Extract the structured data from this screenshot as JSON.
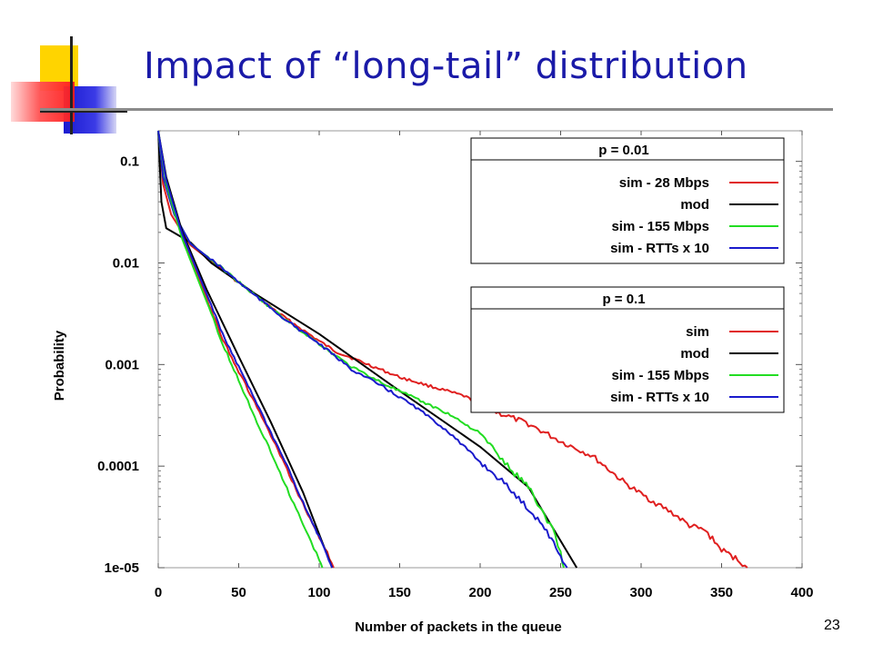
{
  "slide": {
    "title": "Impact of “long-tail” distribution",
    "number": "23"
  },
  "chart_data": {
    "type": "line",
    "xlabel": "Number of packets in the queue",
    "ylabel": "Probability",
    "xlim": [
      0,
      400
    ],
    "ylim": [
      1e-05,
      0.2
    ],
    "yscale": "log",
    "x_ticks": [
      "0",
      "50",
      "100",
      "150",
      "200",
      "250",
      "300",
      "350",
      "400"
    ],
    "y_ticks": [
      {
        "value": 0.1,
        "label": "0.1"
      },
      {
        "value": 0.01,
        "label": "0.01"
      },
      {
        "value": 0.001,
        "label": "0.001"
      },
      {
        "value": 0.0001,
        "label": "0.0001"
      },
      {
        "value": 1e-05,
        "label": "1e-05"
      }
    ],
    "grid": false,
    "legends": [
      {
        "title": "p = 0.01",
        "position": "top-right",
        "entries": [
          {
            "label": "sim - 28 Mbps",
            "color": "#e02020"
          },
          {
            "label": "mod",
            "color": "#000000"
          },
          {
            "label": "sim - 155 Mbps",
            "color": "#22dd22"
          },
          {
            "label": "sim - RTTs x 10",
            "color": "#1a1acc"
          }
        ]
      },
      {
        "title": "p = 0.1",
        "position": "right",
        "entries": [
          {
            "label": "sim",
            "color": "#e02020"
          },
          {
            "label": "mod",
            "color": "#000000"
          },
          {
            "label": "sim - 155 Mbps",
            "color": "#22dd22"
          },
          {
            "label": "sim - RTTs x 10",
            "color": "#1a1acc"
          }
        ]
      }
    ],
    "series": [
      {
        "group": "p = 0.01",
        "color": "#e02020",
        "points": [
          [
            0,
            0.2
          ],
          [
            3,
            0.06
          ],
          [
            8,
            0.03
          ],
          [
            20,
            0.015
          ],
          [
            40,
            0.0085
          ],
          [
            60,
            0.0048
          ],
          [
            80,
            0.0028
          ],
          [
            100,
            0.0017
          ],
          [
            110,
            0.00135
          ],
          [
            150,
            0.00075
          ],
          [
            190,
            0.00049
          ],
          [
            210,
            0.00034
          ],
          [
            230,
            0.00026
          ],
          [
            250,
            0.000175
          ],
          [
            270,
            0.000125
          ],
          [
            290,
            6.8e-05
          ],
          [
            300,
            5.3e-05
          ],
          [
            320,
            3.4e-05
          ],
          [
            330,
            2.6e-05
          ],
          [
            340,
            2.3e-05
          ],
          [
            350,
            1.5e-05
          ],
          [
            360,
            1.2e-05
          ],
          [
            363,
            1.1e-05
          ],
          [
            366,
            1e-05
          ]
        ]
      },
      {
        "group": "p = 0.01",
        "color": "#000000",
        "points": [
          [
            0,
            0.2
          ],
          [
            2,
            0.04
          ],
          [
            5,
            0.022
          ],
          [
            20,
            0.016
          ],
          [
            33,
            0.01
          ],
          [
            60,
            0.005
          ],
          [
            100,
            0.002
          ],
          [
            150,
            0.00055
          ],
          [
            200,
            0.000155
          ],
          [
            230,
            6.2e-05
          ],
          [
            260,
            1e-05
          ]
        ]
      },
      {
        "group": "p = 0.01",
        "color": "#22dd22",
        "points": [
          [
            0,
            0.2
          ],
          [
            3,
            0.07
          ],
          [
            10,
            0.03
          ],
          [
            20,
            0.0155
          ],
          [
            40,
            0.0088
          ],
          [
            60,
            0.0048
          ],
          [
            80,
            0.0027
          ],
          [
            100,
            0.0016
          ],
          [
            120,
            0.00095
          ],
          [
            140,
            0.00065
          ],
          [
            160,
            0.00046
          ],
          [
            180,
            0.00033
          ],
          [
            200,
            0.00021
          ],
          [
            220,
            8.8e-05
          ],
          [
            230,
            6.4e-05
          ],
          [
            240,
            3.2e-05
          ],
          [
            245,
            2.5e-05
          ],
          [
            250,
            1.4e-05
          ],
          [
            252,
            1e-05
          ]
        ]
      },
      {
        "group": "p = 0.01",
        "color": "#1a1acc",
        "points": [
          [
            0,
            0.2
          ],
          [
            3,
            0.07
          ],
          [
            10,
            0.03
          ],
          [
            20,
            0.0155
          ],
          [
            40,
            0.0088
          ],
          [
            60,
            0.0048
          ],
          [
            80,
            0.0027
          ],
          [
            100,
            0.0016
          ],
          [
            120,
            0.0009
          ],
          [
            140,
            0.0006
          ],
          [
            160,
            0.00038
          ],
          [
            180,
            0.00022
          ],
          [
            200,
            0.00011
          ],
          [
            215,
            6.8e-05
          ],
          [
            230,
            3.8e-05
          ],
          [
            240,
            2.5e-05
          ],
          [
            250,
            1.3e-05
          ],
          [
            254,
            1e-05
          ]
        ]
      },
      {
        "group": "p = 0.1",
        "color": "#e02020",
        "points": [
          [
            0,
            0.2
          ],
          [
            5,
            0.06
          ],
          [
            15,
            0.018
          ],
          [
            30,
            0.0045
          ],
          [
            40,
            0.0018
          ],
          [
            50,
            0.00085
          ],
          [
            60,
            0.00042
          ],
          [
            70,
            0.0002
          ],
          [
            80,
            9.2e-05
          ],
          [
            90,
            4.2e-05
          ],
          [
            100,
            2e-05
          ],
          [
            105,
            1.4e-05
          ],
          [
            109,
            1e-05
          ]
        ]
      },
      {
        "group": "p = 0.1",
        "color": "#000000",
        "points": [
          [
            0,
            0.2
          ],
          [
            5,
            0.07
          ],
          [
            15,
            0.02
          ],
          [
            30,
            0.0055
          ],
          [
            50,
            0.0012
          ],
          [
            70,
            0.00027
          ],
          [
            90,
            5.5e-05
          ],
          [
            108,
            1e-05
          ]
        ]
      },
      {
        "group": "p = 0.1",
        "color": "#22dd22",
        "points": [
          [
            0,
            0.2
          ],
          [
            5,
            0.06
          ],
          [
            15,
            0.017
          ],
          [
            30,
            0.0042
          ],
          [
            40,
            0.0016
          ],
          [
            50,
            0.0007
          ],
          [
            60,
            0.0003
          ],
          [
            70,
            0.00014
          ],
          [
            80,
            6e-05
          ],
          [
            90,
            2.7e-05
          ],
          [
            95,
            1.8e-05
          ],
          [
            100,
            1.2e-05
          ],
          [
            102,
            1e-05
          ]
        ]
      },
      {
        "group": "p = 0.1",
        "color": "#1a1acc",
        "points": [
          [
            0,
            0.2
          ],
          [
            5,
            0.065
          ],
          [
            15,
            0.019
          ],
          [
            30,
            0.005
          ],
          [
            40,
            0.002
          ],
          [
            50,
            0.00095
          ],
          [
            60,
            0.00045
          ],
          [
            70,
            0.00021
          ],
          [
            80,
            0.0001
          ],
          [
            90,
            4.4e-05
          ],
          [
            100,
            2e-05
          ],
          [
            106,
            1.2e-05
          ],
          [
            108,
            1e-05
          ]
        ]
      }
    ]
  }
}
